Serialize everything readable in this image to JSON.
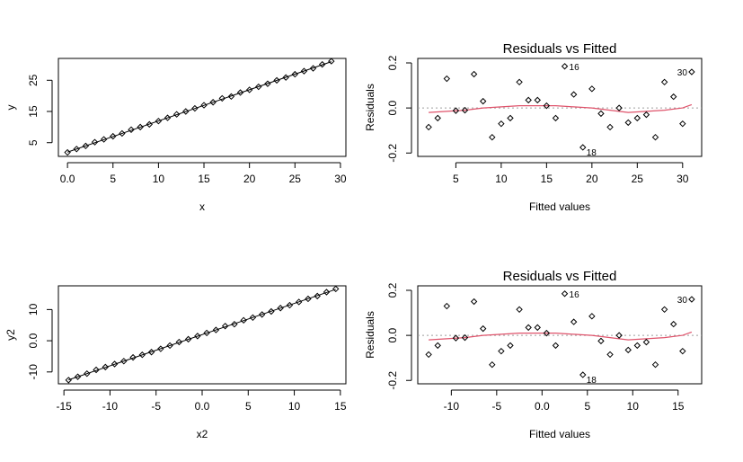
{
  "chart_data": [
    {
      "type": "scatter",
      "title": "",
      "xlabel": "x",
      "ylabel": "y",
      "xlim": [
        -1,
        30.6
      ],
      "ylim": [
        0.6,
        32.0
      ],
      "xticks": [
        0,
        5,
        10,
        15,
        20,
        25,
        30
      ],
      "yticks": [
        5,
        15,
        25
      ],
      "fit_line": {
        "x": [
          0,
          29
        ],
        "y": [
          1.96,
          30.96
        ]
      },
      "points": {
        "x": [
          0,
          1,
          2,
          3,
          4,
          5,
          6,
          7,
          8,
          9,
          10,
          11,
          12,
          13,
          14,
          15,
          16,
          17,
          18,
          19,
          20,
          21,
          22,
          23,
          24,
          25,
          26,
          27,
          28,
          29
        ],
        "y": [
          1.88,
          2.96,
          3.96,
          5.16,
          6.06,
          7.04,
          7.96,
          9.16,
          10.0,
          10.86,
          11.92,
          12.96,
          14.08,
          15.0,
          16.0,
          17.0,
          17.96,
          19.2,
          19.8,
          21.06,
          21.93,
          22.91,
          23.89,
          24.97,
          25.89,
          26.93,
          27.93,
          28.82,
          30.08,
          31.11
        ]
      }
    },
    {
      "type": "scatter",
      "title": "Residuals vs Fitted",
      "xlabel": "Fitted values",
      "ylabel": "Residuals",
      "xlim": [
        0.8,
        32.1
      ],
      "ylim": [
        -0.215,
        0.22
      ],
      "xticks": [
        5,
        10,
        15,
        20,
        25,
        30
      ],
      "yticks": [
        -0.2,
        0.0,
        0.2
      ],
      "zero_line": 0,
      "points": {
        "x": [
          2.0,
          3.0,
          4.0,
          5.0,
          6.0,
          7.0,
          8.0,
          9.0,
          10.0,
          11.0,
          12.0,
          13.0,
          14.0,
          15.0,
          16.0,
          17.0,
          18.0,
          19.0,
          20.0,
          21.0,
          22.0,
          23.0,
          24.0,
          25.0,
          26.0,
          27.0,
          28.0,
          29.0,
          30.0,
          31.0
        ],
        "y": [
          -0.085,
          -0.045,
          0.13,
          -0.012,
          -0.01,
          0.15,
          0.03,
          -0.13,
          -0.07,
          -0.045,
          0.115,
          0.035,
          0.035,
          0.01,
          -0.045,
          0.185,
          0.06,
          -0.175,
          0.085,
          -0.025,
          -0.085,
          0.0,
          -0.065,
          -0.045,
          -0.03,
          -0.13,
          0.115,
          0.05,
          -0.07,
          0.16
        ]
      },
      "smooth_line": {
        "x": [
          2,
          4,
          6,
          8,
          10,
          12,
          14,
          16,
          18,
          20,
          22,
          24,
          26,
          28,
          30,
          31
        ],
        "y": [
          -0.02,
          -0.015,
          -0.01,
          0.0,
          0.005,
          0.01,
          0.01,
          0.01,
          0.005,
          0.0,
          -0.01,
          -0.02,
          -0.015,
          -0.01,
          0.0,
          0.015
        ]
      },
      "labels": [
        {
          "text": "16",
          "x": 17.0,
          "y": 0.185,
          "pos": "right"
        },
        {
          "text": "18",
          "x": 19.0,
          "y": -0.175,
          "pos": "below-right"
        },
        {
          "text": "30",
          "x": 31.0,
          "y": 0.16,
          "pos": "left"
        }
      ]
    },
    {
      "type": "scatter",
      "title": "",
      "xlabel": "x2",
      "ylabel": "y2",
      "xlim": [
        -15.6,
        15.6
      ],
      "ylim": [
        -13.8,
        17.6
      ],
      "xticks": [
        -15,
        -10,
        -5,
        0,
        5,
        10,
        15
      ],
      "yticks": [
        -10,
        0,
        10
      ],
      "fit_line": {
        "x": [
          -14.5,
          14.5
        ],
        "y": [
          -12.54,
          16.46
        ]
      },
      "points": {
        "x": [
          -14.5,
          -13.5,
          -12.5,
          -11.5,
          -10.5,
          -9.5,
          -8.5,
          -7.5,
          -6.5,
          -5.5,
          -4.5,
          -3.5,
          -2.5,
          -1.5,
          -0.5,
          0.5,
          1.5,
          2.5,
          3.5,
          4.5,
          5.5,
          6.5,
          7.5,
          8.5,
          9.5,
          10.5,
          11.5,
          12.5,
          13.5,
          14.5
        ],
        "y": [
          -12.62,
          -11.54,
          -10.54,
          -9.34,
          -8.44,
          -7.46,
          -6.54,
          -5.34,
          -4.5,
          -3.64,
          -2.58,
          -1.54,
          -0.42,
          0.5,
          1.5,
          2.5,
          3.46,
          4.7,
          5.3,
          6.56,
          7.43,
          8.41,
          9.39,
          10.47,
          11.39,
          12.43,
          13.43,
          14.32,
          15.58,
          16.61
        ]
      }
    },
    {
      "type": "scatter",
      "title": "Residuals vs Fitted",
      "xlabel": "Fitted values",
      "ylabel": "Residuals",
      "xlim": [
        -13.7,
        17.6
      ],
      "ylim": [
        -0.215,
        0.22
      ],
      "xticks": [
        -10,
        -5,
        0,
        5,
        10,
        15
      ],
      "yticks": [
        -0.2,
        0.0,
        0.2
      ],
      "zero_line": 0,
      "points": {
        "x": [
          -12.5,
          -11.5,
          -10.5,
          -9.5,
          -8.5,
          -7.5,
          -6.5,
          -5.5,
          -4.5,
          -3.5,
          -2.5,
          -1.5,
          -0.5,
          0.5,
          1.5,
          2.5,
          3.5,
          4.5,
          5.5,
          6.5,
          7.5,
          8.5,
          9.5,
          10.5,
          11.5,
          12.5,
          13.5,
          14.5,
          15.5,
          16.5
        ],
        "y": [
          -0.085,
          -0.045,
          0.13,
          -0.012,
          -0.01,
          0.15,
          0.03,
          -0.13,
          -0.07,
          -0.045,
          0.115,
          0.035,
          0.035,
          0.01,
          -0.045,
          0.185,
          0.06,
          -0.175,
          0.085,
          -0.025,
          -0.085,
          0.0,
          -0.065,
          -0.045,
          -0.03,
          -0.13,
          0.115,
          0.05,
          -0.07,
          0.16
        ]
      },
      "smooth_line": {
        "x": [
          -12.5,
          -10.5,
          -8.5,
          -6.5,
          -4.5,
          -2.5,
          -0.5,
          1.5,
          3.5,
          5.5,
          7.5,
          9.5,
          11.5,
          13.5,
          15.5,
          16.5
        ],
        "y": [
          -0.02,
          -0.015,
          -0.01,
          0.0,
          0.005,
          0.01,
          0.01,
          0.01,
          0.005,
          0.0,
          -0.01,
          -0.02,
          -0.015,
          -0.01,
          0.0,
          0.015
        ]
      },
      "labels": [
        {
          "text": "16",
          "x": 2.5,
          "y": 0.185,
          "pos": "right"
        },
        {
          "text": "18",
          "x": 4.5,
          "y": -0.175,
          "pos": "below-right"
        },
        {
          "text": "30",
          "x": 16.5,
          "y": 0.16,
          "pos": "left"
        }
      ]
    }
  ],
  "colors": {
    "ink": "#000000",
    "smooth": "#df536b",
    "zero_line": "#9e9e9e"
  }
}
